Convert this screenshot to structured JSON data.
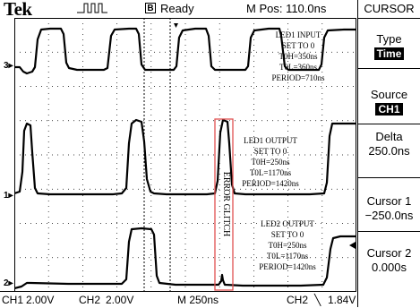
{
  "header": {
    "brand": "Tek",
    "trigger_state_box": "B",
    "trigger_state": "Ready",
    "m_pos": "M Pos: 110.0ns"
  },
  "menu": {
    "title": "CURSOR",
    "type_label": "Type",
    "type_value": "Time",
    "source_label": "Source",
    "source_value": "CH1",
    "delta_label": "Delta",
    "delta_value": "250.0ns",
    "cursor1_label": "Cursor 1",
    "cursor1_value": "−250.0ns",
    "cursor2_label": "Cursor 2",
    "cursor2_value": "0.000s"
  },
  "markers": {
    "ch3": "3▸",
    "ch1": "1▸",
    "ch2": "2▸"
  },
  "annotations": {
    "led1_input": [
      "LED1 INPUT",
      "SET TO 0",
      "T0H=350ns",
      "T0L=360ns",
      "PERIOD=710ns"
    ],
    "led1_output": [
      "LED1 OUTPUT",
      "SET TO 0",
      "T0H=250ns",
      "T0L=1170ns",
      "PERIOD=1420ns"
    ],
    "led2_output": [
      "LED2 OUTPUT",
      "SET TO 0",
      "T0H=250ns",
      "T0L=1170ns",
      "PERIOD=1420ns"
    ],
    "error_glitch": "ERROR GLITCH"
  },
  "footer": {
    "ch1": "CH1",
    "ch1_scale": "2.00V",
    "ch2": "CH2",
    "ch2_scale": "2.00V",
    "timebase": "M 250ns",
    "trig_source": "CH2",
    "trig_slope": "╲",
    "trig_level": "1.84V"
  },
  "colors": {
    "trace": "#000000",
    "highlight_box": "#e05050",
    "grid": "#000000"
  }
}
